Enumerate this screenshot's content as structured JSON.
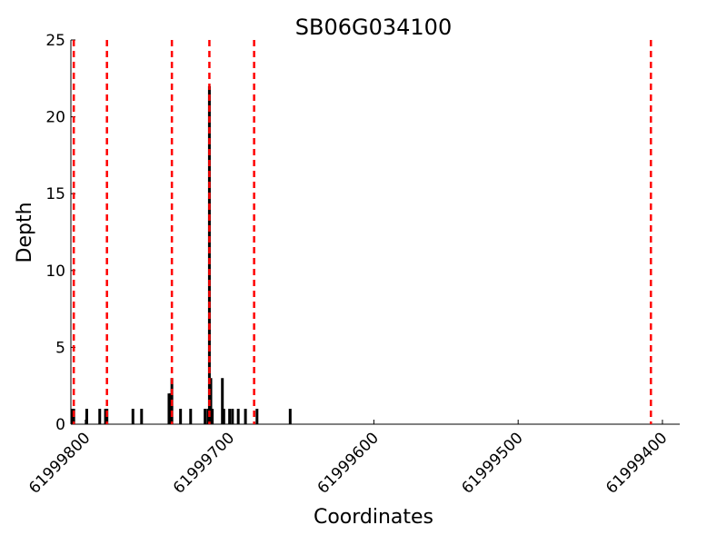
{
  "chart_data": {
    "type": "bar",
    "title": "SB06G034100",
    "xlabel": "Coordinates",
    "ylabel": "Depth",
    "x_axis_reversed": true,
    "xlim": [
      61999810,
      61999388
    ],
    "ylim": [
      0,
      25
    ],
    "x_ticks": [
      61999800,
      61999700,
      61999600,
      61999500,
      61999400
    ],
    "x_tick_labels": [
      "61999800",
      "61999700",
      "61999600",
      "61999500",
      "61999400"
    ],
    "y_ticks": [
      0,
      5,
      10,
      15,
      20,
      25
    ],
    "y_tick_labels": [
      "0",
      "5",
      "10",
      "15",
      "20",
      "25"
    ],
    "grid": false,
    "bar_color": "#000000",
    "line_color": "#ff0000",
    "series": [
      {
        "x": [
          61999809,
          61999808,
          61999799,
          61999790,
          61999786,
          61999785,
          61999767,
          61999761,
          61999742,
          61999741,
          61999740,
          61999734,
          61999727,
          61999717,
          61999715,
          61999714,
          61999713,
          61999712,
          61999705,
          61999704,
          61999700,
          61999698,
          61999694,
          61999689,
          61999681,
          61999658
        ],
        "values": [
          1,
          1,
          1,
          1,
          1,
          1,
          1,
          1,
          2,
          2,
          3,
          1,
          1,
          1,
          1,
          22,
          3,
          1,
          3,
          1,
          1,
          1,
          1,
          1,
          1,
          1
        ]
      }
    ],
    "vertical_lines": [
      61999808,
      61999785,
      61999740,
      61999714,
      61999683,
      61999408
    ]
  }
}
